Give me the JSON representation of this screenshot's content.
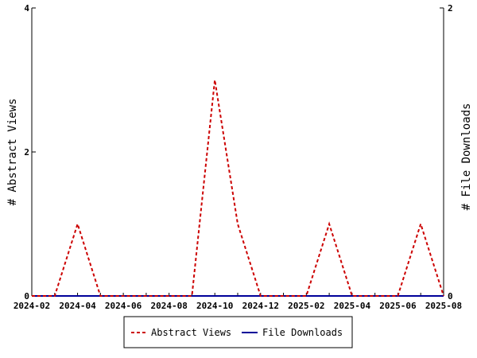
{
  "chart_data": {
    "type": "line",
    "ylabel_left": "# Abstract Views",
    "ylabel_right": "# File Downloads",
    "ylim_left": [
      0,
      4
    ],
    "ylim_right": [
      0,
      2
    ],
    "yticks_left": [
      "0",
      "2",
      "4"
    ],
    "yticks_right": [
      "0",
      "2"
    ],
    "x_tick_labels": [
      "2024-02",
      "2024-04",
      "2024-06",
      "2024-08",
      "2024-10",
      "2024-12",
      "2025-02",
      "2025-04",
      "2025-06",
      "2025-08"
    ],
    "x": [
      "2024-02",
      "2024-03",
      "2024-04",
      "2024-05",
      "2024-06",
      "2024-07",
      "2024-08",
      "2024-09",
      "2024-10",
      "2024-11",
      "2024-12",
      "2025-01",
      "2025-02",
      "2025-03",
      "2025-04",
      "2025-05",
      "2025-06",
      "2025-07",
      "2025-08"
    ],
    "series": [
      {
        "name": "Abstract Views",
        "axis": "left",
        "color": "#cc0000",
        "dash": "dashed",
        "values": [
          0,
          0,
          1,
          0,
          0,
          0,
          0,
          0,
          3,
          1,
          0,
          0,
          0,
          1,
          0,
          0,
          0,
          1,
          0
        ]
      },
      {
        "name": "File Downloads",
        "axis": "right",
        "color": "#000099",
        "dash": "solid",
        "values": [
          0,
          0,
          0,
          0,
          0,
          0,
          0,
          0,
          0,
          0,
          0,
          0,
          0,
          0,
          0,
          0,
          0,
          0,
          0
        ]
      }
    ],
    "grid": false,
    "legend_position": "bottom"
  }
}
